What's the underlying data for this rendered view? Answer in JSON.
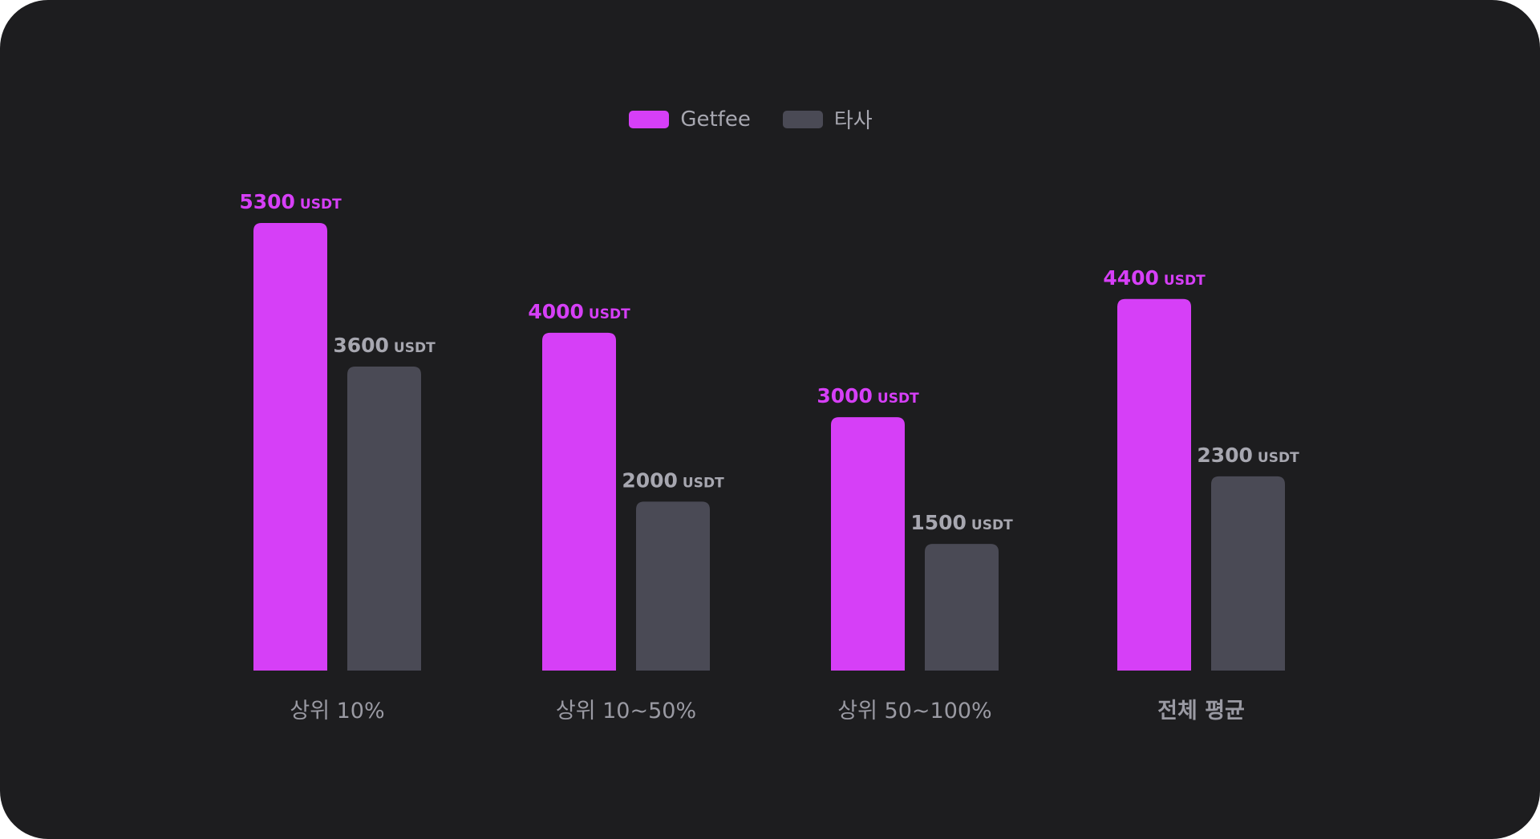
{
  "chart_data": {
    "type": "bar",
    "categories": [
      "상위 10%",
      "상위 10~50%",
      "상위 50~100%",
      "전체 평균"
    ],
    "series": [
      {
        "name": "Getfee",
        "values": [
          5300,
          4000,
          3000,
          4400
        ],
        "color": "#d63ff7"
      },
      {
        "name": "타사",
        "values": [
          3600,
          2000,
          1500,
          2300
        ],
        "color": "#4a4a55"
      }
    ],
    "unit": "USDT",
    "legend_position": "top-center",
    "grid": false,
    "category_label_color": "#9a9aa3",
    "highlight_category": "전체 평균",
    "value_label_colors": [
      "#d63ff7",
      "#a7a7b0"
    ]
  }
}
